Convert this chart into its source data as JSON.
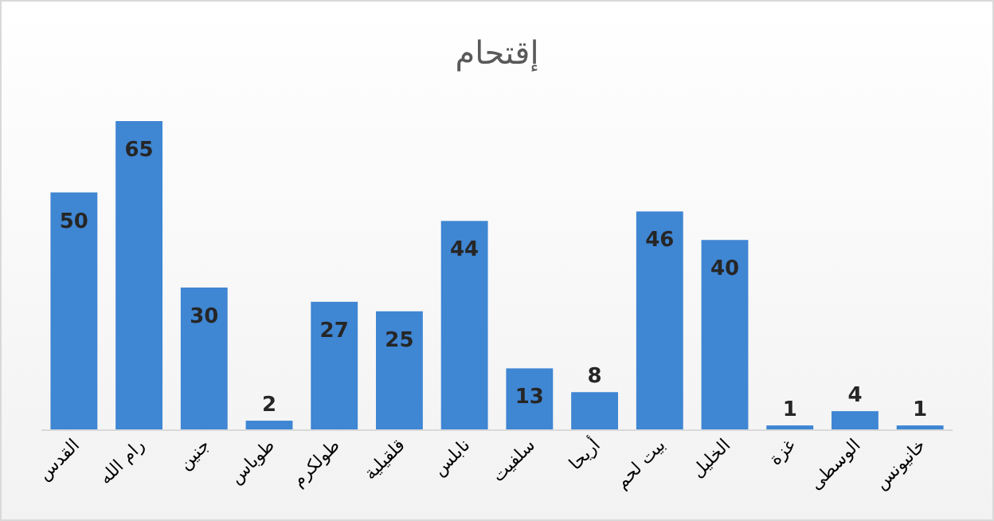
{
  "chart_data": {
    "type": "bar",
    "title": "إقتحام",
    "categories": [
      "القدس",
      "رام الله",
      "جنين",
      "طوباس",
      "طولكرم",
      "قلقيلية",
      "نابلس",
      "سلفيت",
      "أريحا",
      "بيت لحم",
      "الخليل",
      "غزة",
      "الوسطى",
      "خانيونس"
    ],
    "values": [
      50,
      65,
      30,
      2,
      27,
      25,
      44,
      13,
      8,
      46,
      40,
      1,
      4,
      1
    ],
    "color": "#3f86d3",
    "data_labels": true
  }
}
